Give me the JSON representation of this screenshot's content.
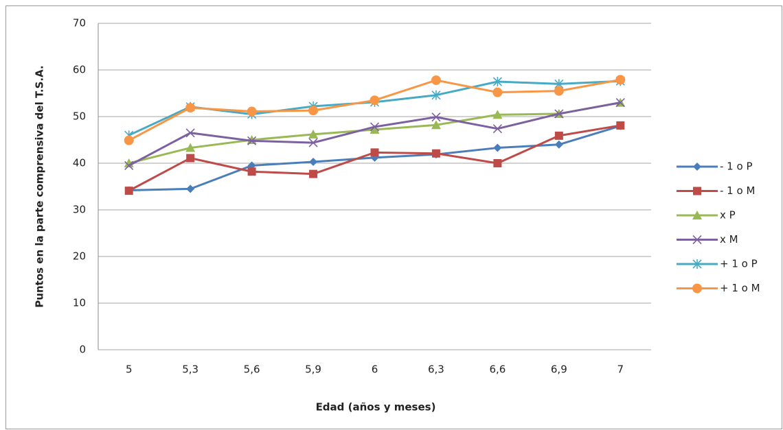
{
  "chart_data": {
    "type": "line",
    "x_label": "Edad (años y meses)",
    "y_label": "Puntos en la parte comprensiva del T.S.A.",
    "categories": [
      "5",
      "5,3",
      "5,6",
      "5,9",
      "6",
      "6,3",
      "6,6",
      "6,9",
      "7"
    ],
    "ylim": [
      0,
      70
    ],
    "yticks": [
      0,
      10,
      20,
      30,
      40,
      50,
      60,
      70
    ],
    "grid": true,
    "series": [
      {
        "name": "- 1 o P",
        "color": "#4a7ebb",
        "marker": "diamond",
        "values": [
          34.2,
          34.5,
          39.5,
          40.3,
          41.2,
          41.9,
          43.3,
          44,
          48
        ]
      },
      {
        "name": "- 1 o M",
        "color": "#be4b48",
        "marker": "square",
        "values": [
          34.1,
          41.1,
          38.2,
          37.7,
          42.3,
          42.1,
          40,
          45.9,
          48.1
        ]
      },
      {
        "name": "x P",
        "color": "#98b954",
        "marker": "triangle",
        "values": [
          40,
          43.3,
          45,
          46.2,
          47.2,
          48.2,
          50.4,
          50.6,
          53
        ]
      },
      {
        "name": "x M",
        "color": "#7d60a0",
        "marker": "x",
        "values": [
          39.5,
          46.5,
          44.8,
          44.4,
          47.8,
          49.9,
          47.4,
          50.6,
          53
        ]
      },
      {
        "name": "+ 1 o P",
        "color": "#46aac5",
        "marker": "star",
        "values": [
          46,
          52.1,
          50.5,
          52.2,
          53.1,
          54.6,
          57.5,
          57,
          57.6
        ]
      },
      {
        "name": "+ 1 o M",
        "color": "#f79646",
        "marker": "circle",
        "values": [
          44.9,
          51.9,
          51.1,
          51.3,
          53.5,
          57.8,
          55.2,
          55.5,
          57.9
        ]
      }
    ]
  }
}
